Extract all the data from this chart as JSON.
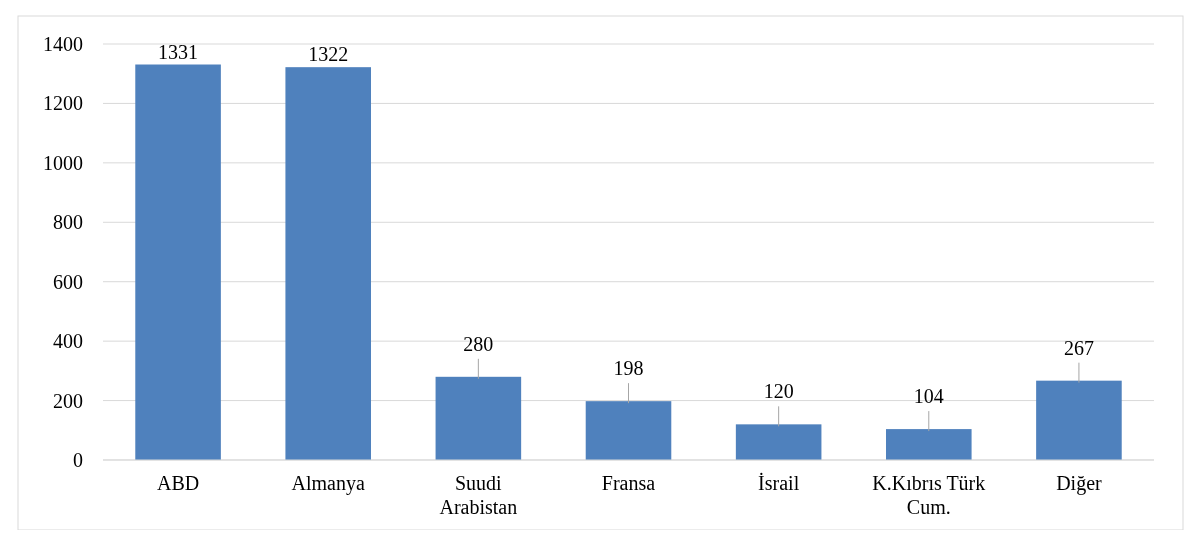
{
  "chart_data": {
    "type": "bar",
    "categories": [
      "ABD",
      "Almanya",
      "Suudi Arabistan",
      "Fransa",
      "İsrail",
      "K.Kıbrıs Türk Cum.",
      "Diğer"
    ],
    "values": [
      1331,
      1322,
      280,
      198,
      120,
      104,
      267
    ],
    "color": "#4f81bd",
    "ylim": [
      0,
      1400
    ],
    "yticks": [
      0,
      200,
      400,
      600,
      800,
      1000,
      1200,
      1400
    ],
    "grid": "y",
    "data_labels": true
  }
}
